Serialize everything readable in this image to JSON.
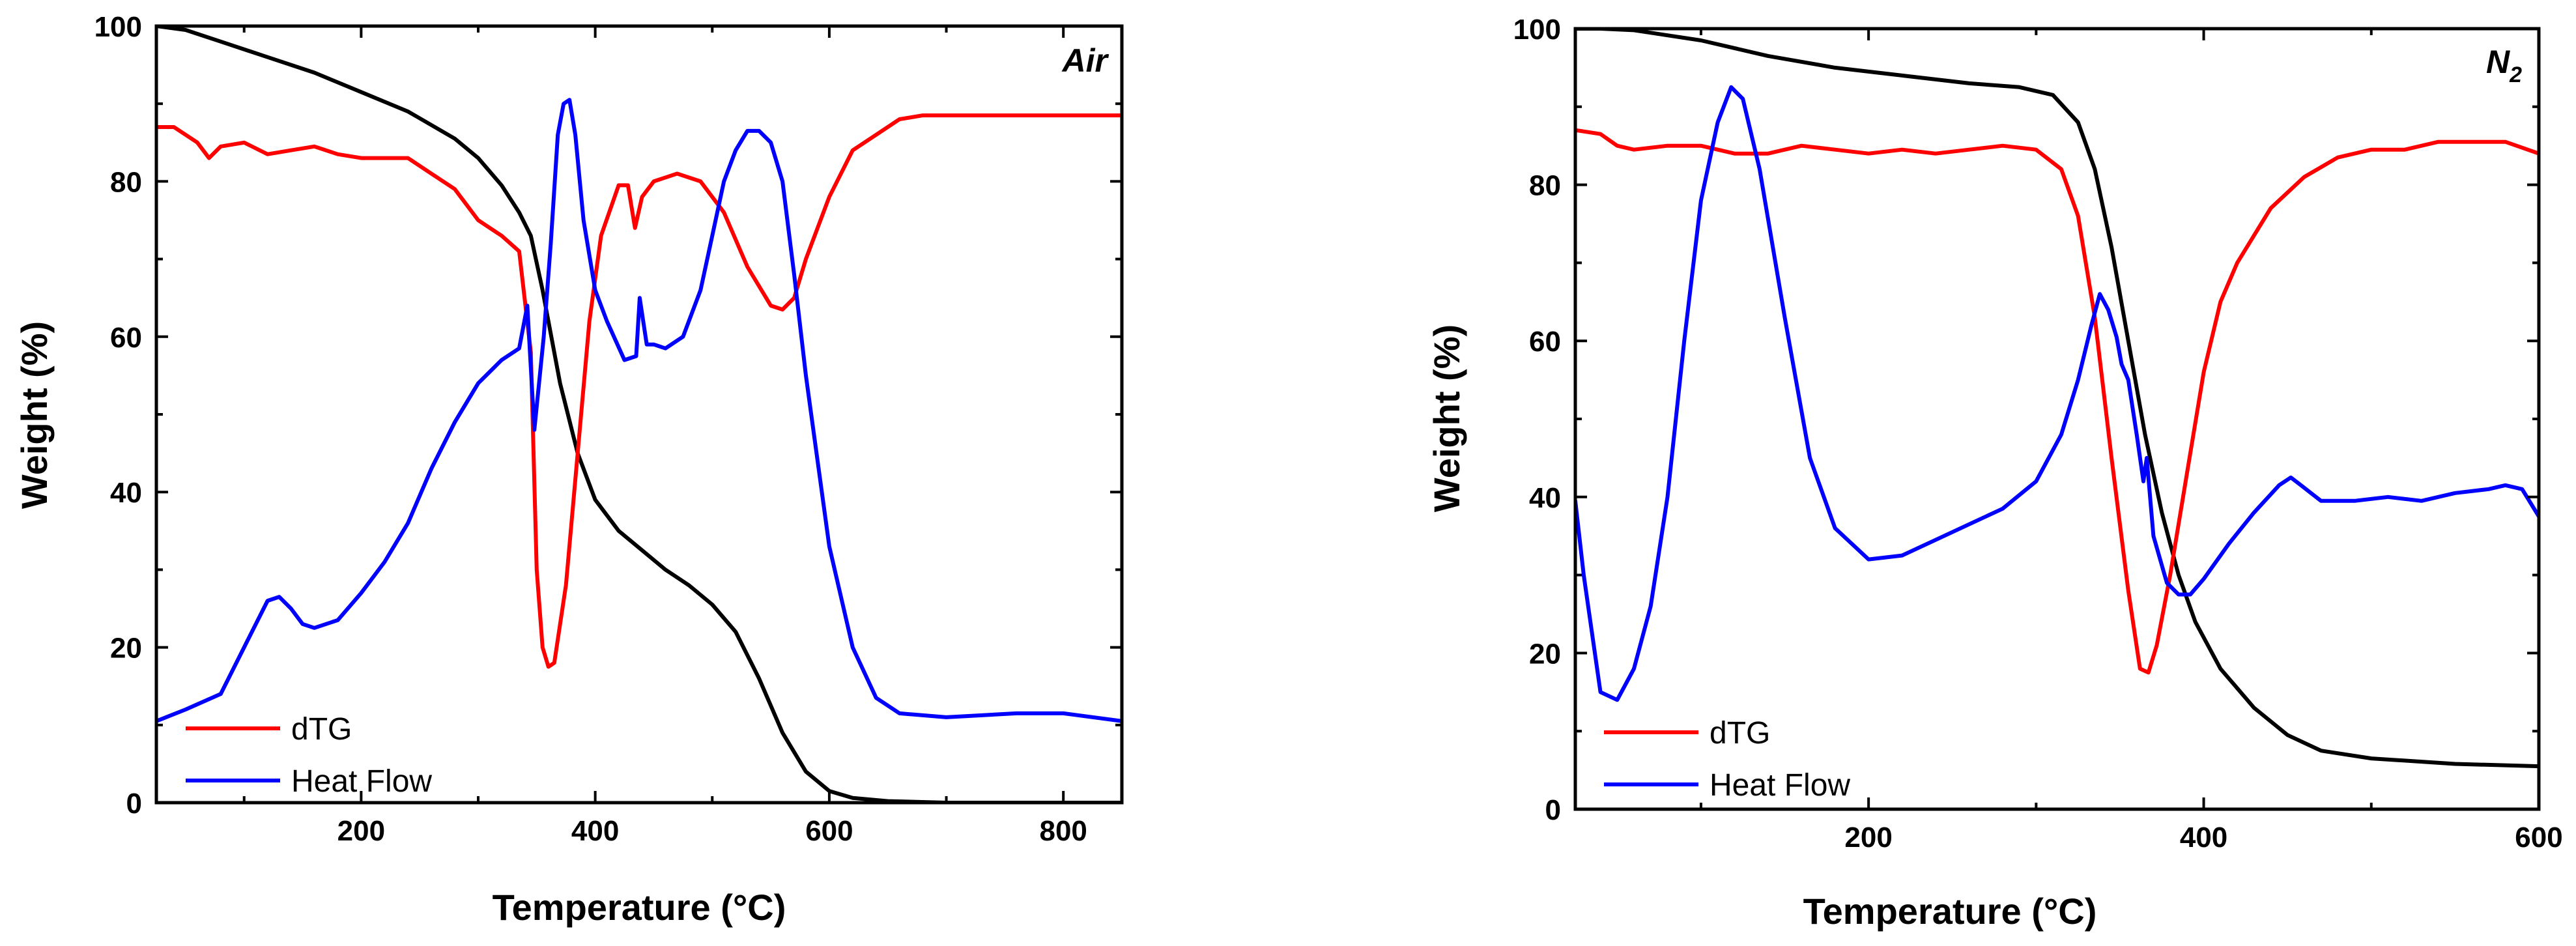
{
  "chart_data": [
    {
      "type": "line",
      "title": "Air",
      "xlabel": "Temperature (°C)",
      "ylabel": "Weight (%)",
      "xlim": [
        25,
        850
      ],
      "ylim": [
        0,
        100
      ],
      "xticks": [
        200,
        400,
        600,
        800
      ],
      "yticks": [
        0,
        20,
        40,
        60,
        80,
        100
      ],
      "legend_position": "bottom-left",
      "series": [
        {
          "name": "Weight",
          "color": "#000000",
          "in_legend": false,
          "x": [
            25,
            50,
            80,
            120,
            160,
            200,
            240,
            280,
            300,
            320,
            335,
            345,
            355,
            370,
            385,
            400,
            420,
            440,
            460,
            480,
            500,
            520,
            540,
            560,
            580,
            600,
            620,
            650,
            700,
            800,
            850
          ],
          "y": [
            100,
            99.5,
            98,
            96,
            94,
            91.5,
            89,
            85.5,
            83,
            79.5,
            76,
            73,
            66,
            54,
            45,
            39,
            35,
            32.5,
            30,
            28,
            25.5,
            22,
            16,
            9,
            4,
            1.5,
            0.6,
            0.2,
            0,
            0,
            0
          ]
        },
        {
          "name": "dTG",
          "color": "#ff0000",
          "in_legend": true,
          "x": [
            25,
            40,
            60,
            70,
            80,
            100,
            120,
            140,
            160,
            180,
            200,
            220,
            240,
            260,
            280,
            300,
            320,
            335,
            345,
            350,
            355,
            360,
            365,
            375,
            385,
            395,
            405,
            420,
            428,
            434,
            440,
            450,
            470,
            490,
            510,
            530,
            550,
            560,
            570,
            580,
            600,
            620,
            640,
            660,
            680,
            700,
            750,
            800,
            850
          ],
          "y": [
            87,
            87,
            85,
            83,
            84.5,
            85,
            83.5,
            84,
            84.5,
            83.5,
            83,
            83,
            83,
            81,
            79,
            75,
            73,
            71,
            58,
            30,
            20,
            17.5,
            18,
            28,
            45,
            62,
            73,
            79.5,
            79.5,
            74,
            78,
            80,
            81,
            80,
            76,
            69,
            64,
            63.5,
            65,
            70,
            78,
            84,
            86,
            88,
            88.5,
            88.5,
            88.5,
            88.5,
            88.5
          ]
        },
        {
          "name": "Heat Flow",
          "color": "#0000ff",
          "in_legend": true,
          "x": [
            25,
            50,
            80,
            100,
            120,
            130,
            140,
            150,
            160,
            180,
            200,
            220,
            240,
            260,
            280,
            300,
            320,
            335,
            342,
            345,
            348,
            352,
            356,
            362,
            368,
            373,
            378,
            383,
            390,
            400,
            410,
            425,
            435,
            438,
            441,
            444,
            450,
            460,
            475,
            490,
            500,
            510,
            520,
            530,
            540,
            550,
            560,
            570,
            580,
            600,
            620,
            640,
            660,
            700,
            760,
            800,
            850
          ],
          "y": [
            10.5,
            12,
            14,
            20,
            26,
            26.5,
            25,
            23,
            22.5,
            23.5,
            27,
            31,
            36,
            43,
            49,
            54,
            57,
            58.5,
            64,
            56,
            48,
            54,
            60,
            72,
            86,
            90,
            90.5,
            86,
            75,
            66,
            62,
            57,
            57.5,
            65,
            62,
            59,
            59,
            58.5,
            60,
            66,
            73,
            80,
            84,
            86.5,
            86.5,
            85,
            80,
            68,
            55,
            33,
            20,
            13.5,
            11.5,
            11,
            11.5,
            11.5,
            10.5
          ]
        }
      ]
    },
    {
      "type": "line",
      "title_main": "N",
      "title_sub": "2",
      "xlabel": "Temperature (°C)",
      "ylabel": "Weight (%)",
      "xlim": [
        25,
        600
      ],
      "ylim": [
        0,
        100
      ],
      "xticks": [
        200,
        400,
        600
      ],
      "yticks": [
        0,
        20,
        40,
        60,
        80,
        100
      ],
      "legend_position": "bottom-left",
      "series": [
        {
          "name": "Weight",
          "color": "#000000",
          "in_legend": false,
          "x": [
            25,
            40,
            60,
            100,
            140,
            180,
            220,
            260,
            290,
            310,
            325,
            335,
            345,
            355,
            365,
            375,
            385,
            395,
            410,
            430,
            450,
            470,
            500,
            550,
            600
          ],
          "y": [
            100,
            100,
            99.8,
            98.5,
            96.5,
            95,
            94,
            93,
            92.5,
            91.5,
            88,
            82,
            72,
            60,
            48,
            38,
            30,
            24,
            18,
            13,
            9.5,
            7.5,
            6.5,
            5.8,
            5.5
          ]
        },
        {
          "name": "dTG",
          "color": "#ff0000",
          "in_legend": true,
          "x": [
            25,
            40,
            50,
            60,
            80,
            100,
            120,
            140,
            160,
            180,
            200,
            220,
            240,
            260,
            280,
            300,
            315,
            325,
            335,
            345,
            355,
            362,
            367,
            372,
            380,
            390,
            400,
            410,
            420,
            440,
            460,
            480,
            500,
            520,
            540,
            560,
            580,
            600
          ],
          "y": [
            87,
            86.5,
            85,
            84.5,
            85,
            85,
            84,
            84,
            85,
            84.5,
            84,
            84.5,
            84,
            84.5,
            85,
            84.5,
            82,
            76,
            63,
            45,
            28,
            18,
            17.5,
            21,
            30,
            43,
            56,
            65,
            70,
            77,
            81,
            83.5,
            84.5,
            84.5,
            85.5,
            85.5,
            85.5,
            84
          ]
        },
        {
          "name": "Heat Flow",
          "color": "#0000ff",
          "in_legend": true,
          "x": [
            25,
            30,
            40,
            50,
            60,
            70,
            80,
            90,
            100,
            110,
            118,
            125,
            135,
            150,
            165,
            180,
            200,
            220,
            240,
            260,
            280,
            300,
            315,
            325,
            333,
            338,
            343,
            348,
            351,
            355,
            360,
            364,
            366,
            370,
            378,
            385,
            392,
            400,
            415,
            430,
            445,
            452,
            458,
            470,
            490,
            510,
            530,
            550,
            570,
            580,
            590,
            600
          ],
          "y": [
            39.5,
            30,
            15,
            14,
            18,
            26,
            40,
            60,
            78,
            88,
            92.5,
            91,
            82,
            63,
            45,
            36,
            32,
            32.5,
            34.5,
            36.5,
            38.5,
            42,
            48,
            55,
            62,
            66,
            64,
            60.5,
            57,
            55,
            48,
            42,
            45,
            35,
            29,
            27.5,
            27.5,
            29.5,
            34,
            38,
            41.5,
            42.5,
            41.5,
            39.5,
            39.5,
            40,
            39.5,
            40.5,
            41,
            41.5,
            41,
            37.5
          ]
        }
      ]
    }
  ]
}
